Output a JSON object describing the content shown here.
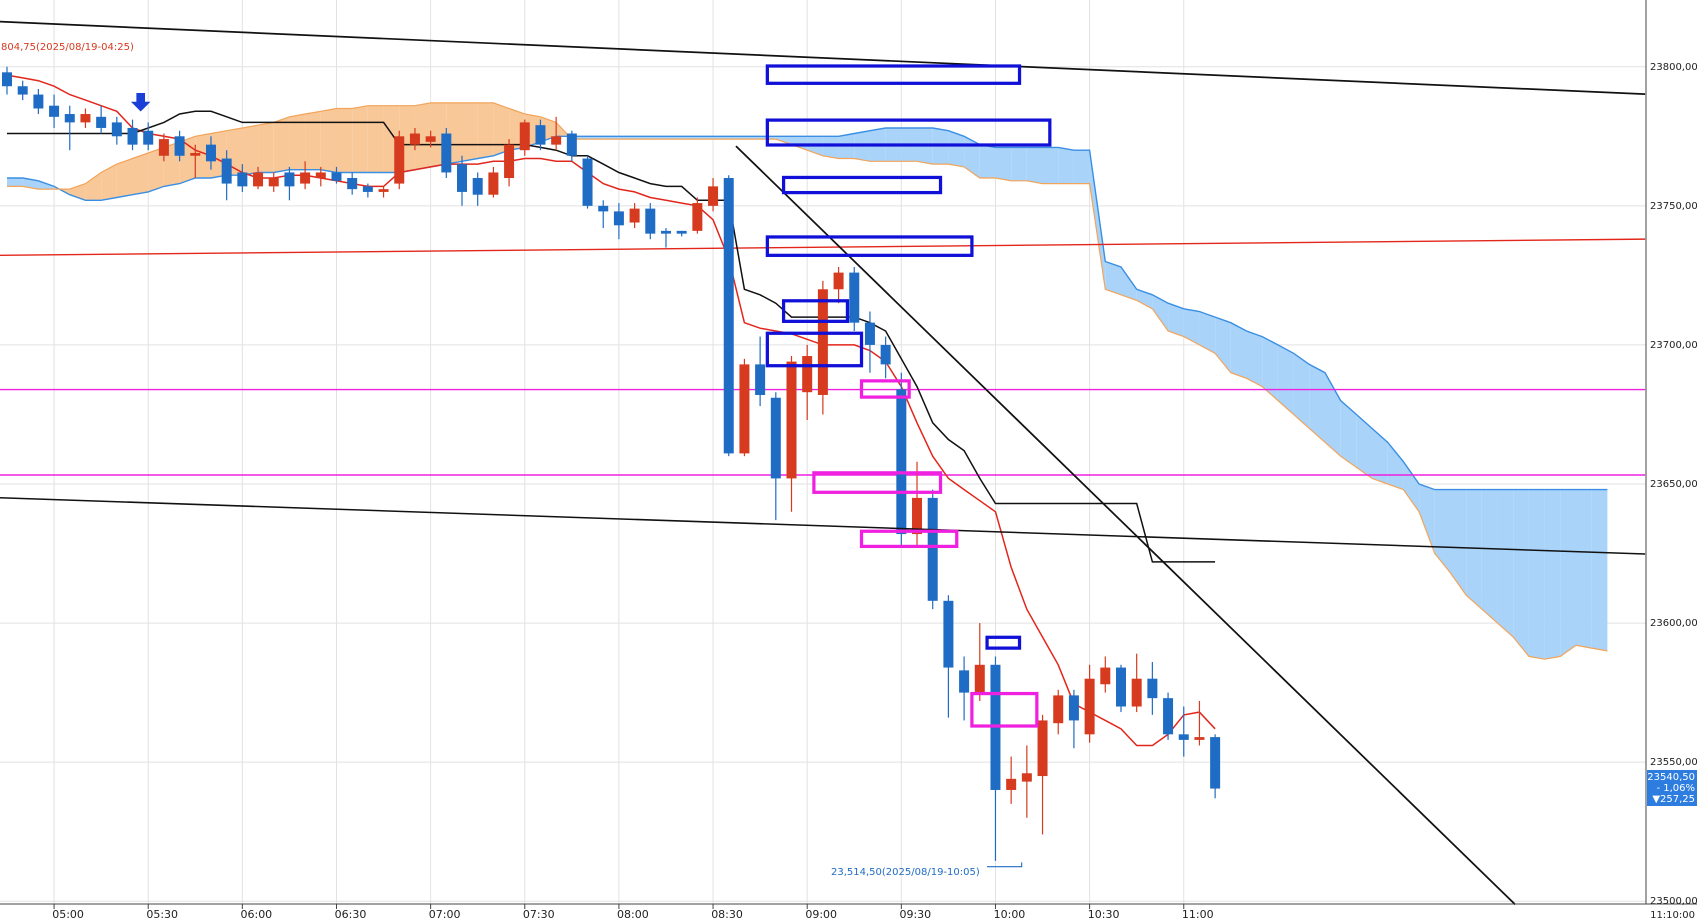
{
  "chart_data": {
    "type": "candlestick",
    "top_annotation": "804,75(2025/08/19-04:25)",
    "low_annotation": "23,514,50(2025/08/19-10:05)",
    "last_price_labels": [
      "23540,50",
      "- 1,06%",
      "▼257,25"
    ],
    "x_end_label": "11:10:00",
    "up_color": "#d63a1f",
    "down_color": "#1f6cc4",
    "grid": true,
    "ylim": [
      23499,
      23824
    ],
    "yticks": [
      {
        "value": 23500,
        "label": "23500,00"
      },
      {
        "value": 23550,
        "label": "23550,00"
      },
      {
        "value": 23600,
        "label": "23600,00"
      },
      {
        "value": 23650,
        "label": "23650,00"
      },
      {
        "value": 23700,
        "label": "23700,00"
      },
      {
        "value": 23750,
        "label": "23750,00"
      },
      {
        "value": 23800,
        "label": "23800,00"
      }
    ],
    "categories": [
      null,
      null,
      null,
      "05:00",
      null,
      null,
      null,
      null,
      null,
      "05:30",
      null,
      null,
      null,
      null,
      null,
      "06:00",
      null,
      null,
      null,
      null,
      null,
      "06:30",
      null,
      null,
      null,
      null,
      null,
      "07:00",
      null,
      null,
      null,
      null,
      null,
      "07:30",
      null,
      null,
      null,
      null,
      null,
      "08:00",
      null,
      null,
      null,
      null,
      null,
      "08:30",
      null,
      null,
      null,
      null,
      null,
      "09:00",
      null,
      null,
      null,
      null,
      null,
      "09:30",
      null,
      null,
      null,
      null,
      null,
      "10:00",
      null,
      null,
      null,
      null,
      null,
      "10:30",
      null,
      null,
      null,
      null,
      null,
      "11:00",
      null,
      null,
      null,
      null,
      null,
      null,
      null,
      null,
      null,
      null,
      null,
      null,
      null,
      null,
      null,
      null,
      null,
      null,
      null,
      null,
      null,
      null,
      null,
      null,
      null,
      null,
      null
    ],
    "open": [
      23798,
      23793,
      23790,
      23786,
      23783,
      23780,
      23782,
      23780,
      23778,
      23777,
      23768,
      23775,
      23768,
      23772,
      23767,
      23762,
      23757,
      23757,
      23762,
      23758,
      23760,
      23762,
      23760,
      23757,
      23755,
      23758,
      23772,
      23773,
      23776,
      23765,
      23760,
      23754,
      23760,
      23770,
      23779,
      23772,
      23776,
      23767,
      23750,
      23748,
      23744,
      23749,
      23741,
      23741,
      23741,
      23750,
      23760,
      23661,
      23693,
      23681,
      23652,
      23683,
      23682,
      23720,
      23726,
      23708,
      23700,
      23684,
      23632,
      23645,
      23608,
      23583,
      23575,
      23585,
      23540,
      23543,
      23545,
      23564,
      23574,
      23560,
      23578,
      23584,
      23570,
      23580,
      23573,
      23560,
      23558,
      23559,
      null,
      null,
      null,
      null,
      null,
      null,
      null,
      null,
      null,
      null,
      null,
      null,
      null,
      null,
      null,
      null,
      null,
      null,
      null,
      null,
      null,
      null,
      null,
      null,
      null
    ],
    "high": [
      23800,
      23795,
      23792,
      23790,
      23786,
      23785,
      23786,
      23782,
      23781,
      23780,
      23776,
      23777,
      23772,
      23775,
      23770,
      23765,
      23764,
      23762,
      23764,
      23766,
      23764,
      23764,
      23762,
      23758,
      23757,
      23777,
      23778,
      23777,
      23778,
      23768,
      23762,
      23764,
      23774,
      23781,
      23781,
      23782,
      23777,
      23768,
      23752,
      23751,
      23751,
      23751,
      23742,
      23741,
      23753,
      23760,
      23761,
      23695,
      23703,
      23683,
      23696,
      23700,
      23723,
      23728,
      23728,
      23712,
      23703,
      23690,
      23658,
      23648,
      23610,
      23588,
      23600,
      23588,
      23552,
      23556,
      23567,
      23576,
      23576,
      23585,
      23588,
      23585,
      23589,
      23586,
      23575,
      23570,
      23572,
      23560,
      null,
      null,
      null,
      null,
      null,
      null,
      null,
      null,
      null,
      null,
      null,
      null,
      null,
      null,
      null,
      null,
      null,
      null,
      null,
      null,
      null,
      null,
      null,
      null,
      null
    ],
    "low": [
      23790,
      23788,
      23783,
      23778,
      23770,
      23778,
      23776,
      23772,
      23770,
      23770,
      23766,
      23766,
      23760,
      23763,
      23752,
      23755,
      23756,
      23755,
      23752,
      23756,
      23757,
      23758,
      23754,
      23753,
      23753,
      23756,
      23770,
      23771,
      23760,
      23750,
      23750,
      23753,
      23757,
      23768,
      23770,
      23770,
      23766,
      23749,
      23742,
      23738,
      23742,
      23738,
      23735,
      23739,
      23740,
      23748,
      23660,
      23660,
      23678,
      23637,
      23640,
      23673,
      23675,
      23715,
      23705,
      23690,
      23688,
      23628,
      23628,
      23605,
      23566,
      23565,
      23572,
      23514.5,
      23535,
      23530,
      23524,
      23560,
      23555,
      23557,
      23575,
      23568,
      23568,
      23567,
      23558,
      23552,
      23556,
      23537,
      null,
      null,
      null,
      null,
      null,
      null,
      null,
      null,
      null,
      null,
      null,
      null,
      null,
      null,
      null,
      null,
      null,
      null,
      null,
      null,
      null,
      null,
      null,
      null,
      null
    ],
    "close": [
      23793,
      23790,
      23785,
      23782,
      23780,
      23783,
      23778,
      23775,
      23772,
      23772,
      23774,
      23768,
      23769,
      23766,
      23758,
      23757,
      23762,
      23760,
      23757,
      23762,
      23762,
      23759,
      23756,
      23755,
      23756,
      23775,
      23776,
      23775,
      23762,
      23755,
      23754,
      23762,
      23772,
      23780,
      23772,
      23775,
      23768,
      23750,
      23748,
      23743,
      23749,
      23740,
      23740,
      23740,
      23751,
      23757,
      23661,
      23693,
      23682,
      23652,
      23694,
      23696,
      23720,
      23726,
      23708,
      23700,
      23693,
      23632,
      23645,
      23608,
      23584,
      23575,
      23585,
      23540,
      23544,
      23546,
      23565,
      23574,
      23565,
      23580,
      23584,
      23570,
      23580,
      23573,
      23560,
      23558,
      23559,
      23540.5,
      null,
      null,
      null,
      null,
      null,
      null,
      null,
      null,
      null,
      null,
      null,
      null,
      null,
      null,
      null,
      null,
      null,
      null,
      null,
      null,
      null,
      null,
      null,
      null,
      null
    ],
    "series": [
      {
        "color": "#e3261b",
        "values": [
          23797,
          23796,
          23795,
          23793,
          23790,
          23788,
          23786,
          23784,
          23778,
          23776,
          23775,
          23774,
          23770,
          23768,
          23765,
          23762,
          23760,
          23760,
          23761,
          23761,
          23760,
          23759,
          23758,
          23757,
          23757,
          23762,
          23763,
          23764,
          23765,
          23765,
          23765,
          23766,
          23766,
          23767,
          23767,
          23766,
          23766,
          23762,
          23758,
          23756,
          23755,
          23753,
          23752,
          23751,
          23750,
          23745,
          23731,
          23708,
          23706,
          23705,
          23704,
          23702,
          23700,
          23700,
          23700,
          23698,
          23694,
          23685,
          23672,
          23660,
          23652,
          23648,
          23644,
          23640,
          23620,
          23605,
          23595,
          23585,
          23571,
          23568,
          23565,
          23562,
          23556,
          23556,
          23560,
          23567,
          23568,
          23562,
          null,
          null,
          null,
          null,
          null,
          null,
          null,
          null,
          null,
          null,
          null,
          null,
          null,
          null,
          null,
          null,
          null,
          null,
          null,
          null,
          null,
          null,
          null,
          null,
          null
        ]
      },
      {
        "color": "#111111",
        "values": [
          23776,
          23776,
          23776,
          23776,
          23776,
          23776,
          23776,
          23776,
          23776,
          23778,
          23780,
          23783,
          23784,
          23784,
          23782,
          23780,
          23780,
          23780,
          23780,
          23780,
          23780,
          23780,
          23780,
          23780,
          23780,
          23772,
          23772,
          23772,
          23772,
          23772,
          23772,
          23772,
          23772,
          23772,
          23771,
          23770,
          23768,
          23768,
          23765,
          23762,
          23760,
          23758,
          23757,
          23757,
          23752,
          23752,
          23752,
          23720,
          23718,
          23715,
          23710,
          23710,
          23710,
          23710,
          23710,
          23708,
          23705,
          23695,
          23685,
          23672,
          23666,
          23662,
          23652,
          23643,
          23643,
          23643,
          23643,
          23643,
          23643,
          23643,
          23643,
          23643,
          23643,
          23622,
          23622,
          23622,
          23622,
          23622,
          null,
          null,
          null,
          null,
          null,
          null,
          null,
          null,
          null,
          null,
          null,
          null,
          null,
          null,
          null,
          null,
          null,
          null,
          null,
          null,
          null,
          null,
          null,
          null,
          null
        ]
      }
    ],
    "cloud": {
      "span_a_color": "#3a8fe3",
      "span_b_color": "#f2a45a",
      "a_above_fill": "#a9d3f9",
      "b_above_fill": "#f9c898",
      "span_a": [
        23760,
        23760,
        23759,
        23757,
        23754,
        23752,
        23752,
        23753,
        23754,
        23755,
        23757,
        23758,
        23760,
        23760,
        23761,
        23761,
        23762,
        23762,
        23763,
        23763,
        23763,
        23762,
        23762,
        23762,
        23762,
        23762,
        23763,
        23764,
        23765,
        23766,
        23767,
        23768,
        23770,
        23771,
        23773,
        23775,
        23775,
        23775,
        23775,
        23775,
        23775,
        23775,
        23775,
        23775,
        23775,
        23775,
        23775,
        23775,
        23775,
        23775,
        23775,
        23775,
        23775,
        23775,
        23776,
        23777,
        23778,
        23778,
        23778,
        23778,
        23777,
        23775,
        23772,
        23771,
        23771,
        23771,
        23771,
        23771,
        23770,
        23770,
        23730,
        23728,
        23720,
        23718,
        23715,
        23713,
        23712,
        23710,
        23708,
        23705,
        23703,
        23700,
        23697,
        23693,
        23690,
        23680,
        23675,
        23670,
        23665,
        23658,
        23650,
        23648,
        23648,
        23648,
        23648,
        23648,
        23648,
        23648,
        23648,
        23648,
        23648,
        23648,
        23648
      ],
      "span_b": [
        23757,
        23757,
        23756,
        23756,
        23756,
        23758,
        23762,
        23765,
        23767,
        23769,
        23771,
        23773,
        23775,
        23776,
        23777,
        23778,
        23779,
        23780,
        23782,
        23783,
        23784,
        23785,
        23785,
        23786,
        23786,
        23786,
        23786,
        23787,
        23787,
        23787,
        23787,
        23787,
        23785,
        23783,
        23782,
        23780,
        23774,
        23774,
        23774,
        23774,
        23774,
        23774,
        23774,
        23774,
        23774,
        23774,
        23774,
        23774,
        23774,
        23774,
        23772,
        23770,
        23768,
        23767,
        23767,
        23766,
        23766,
        23766,
        23766,
        23765,
        23765,
        23764,
        23760,
        23760,
        23759,
        23759,
        23758,
        23758,
        23758,
        23758,
        23720,
        23718,
        23716,
        23713,
        23705,
        23703,
        23700,
        23697,
        23690,
        23688,
        23685,
        23680,
        23675,
        23670,
        23665,
        23660,
        23656,
        23652,
        23650,
        23648,
        23640,
        23625,
        23618,
        23610,
        23605,
        23600,
        23595,
        23588,
        23587,
        23588,
        23592,
        23591,
        23590
      ]
    }
  }
}
